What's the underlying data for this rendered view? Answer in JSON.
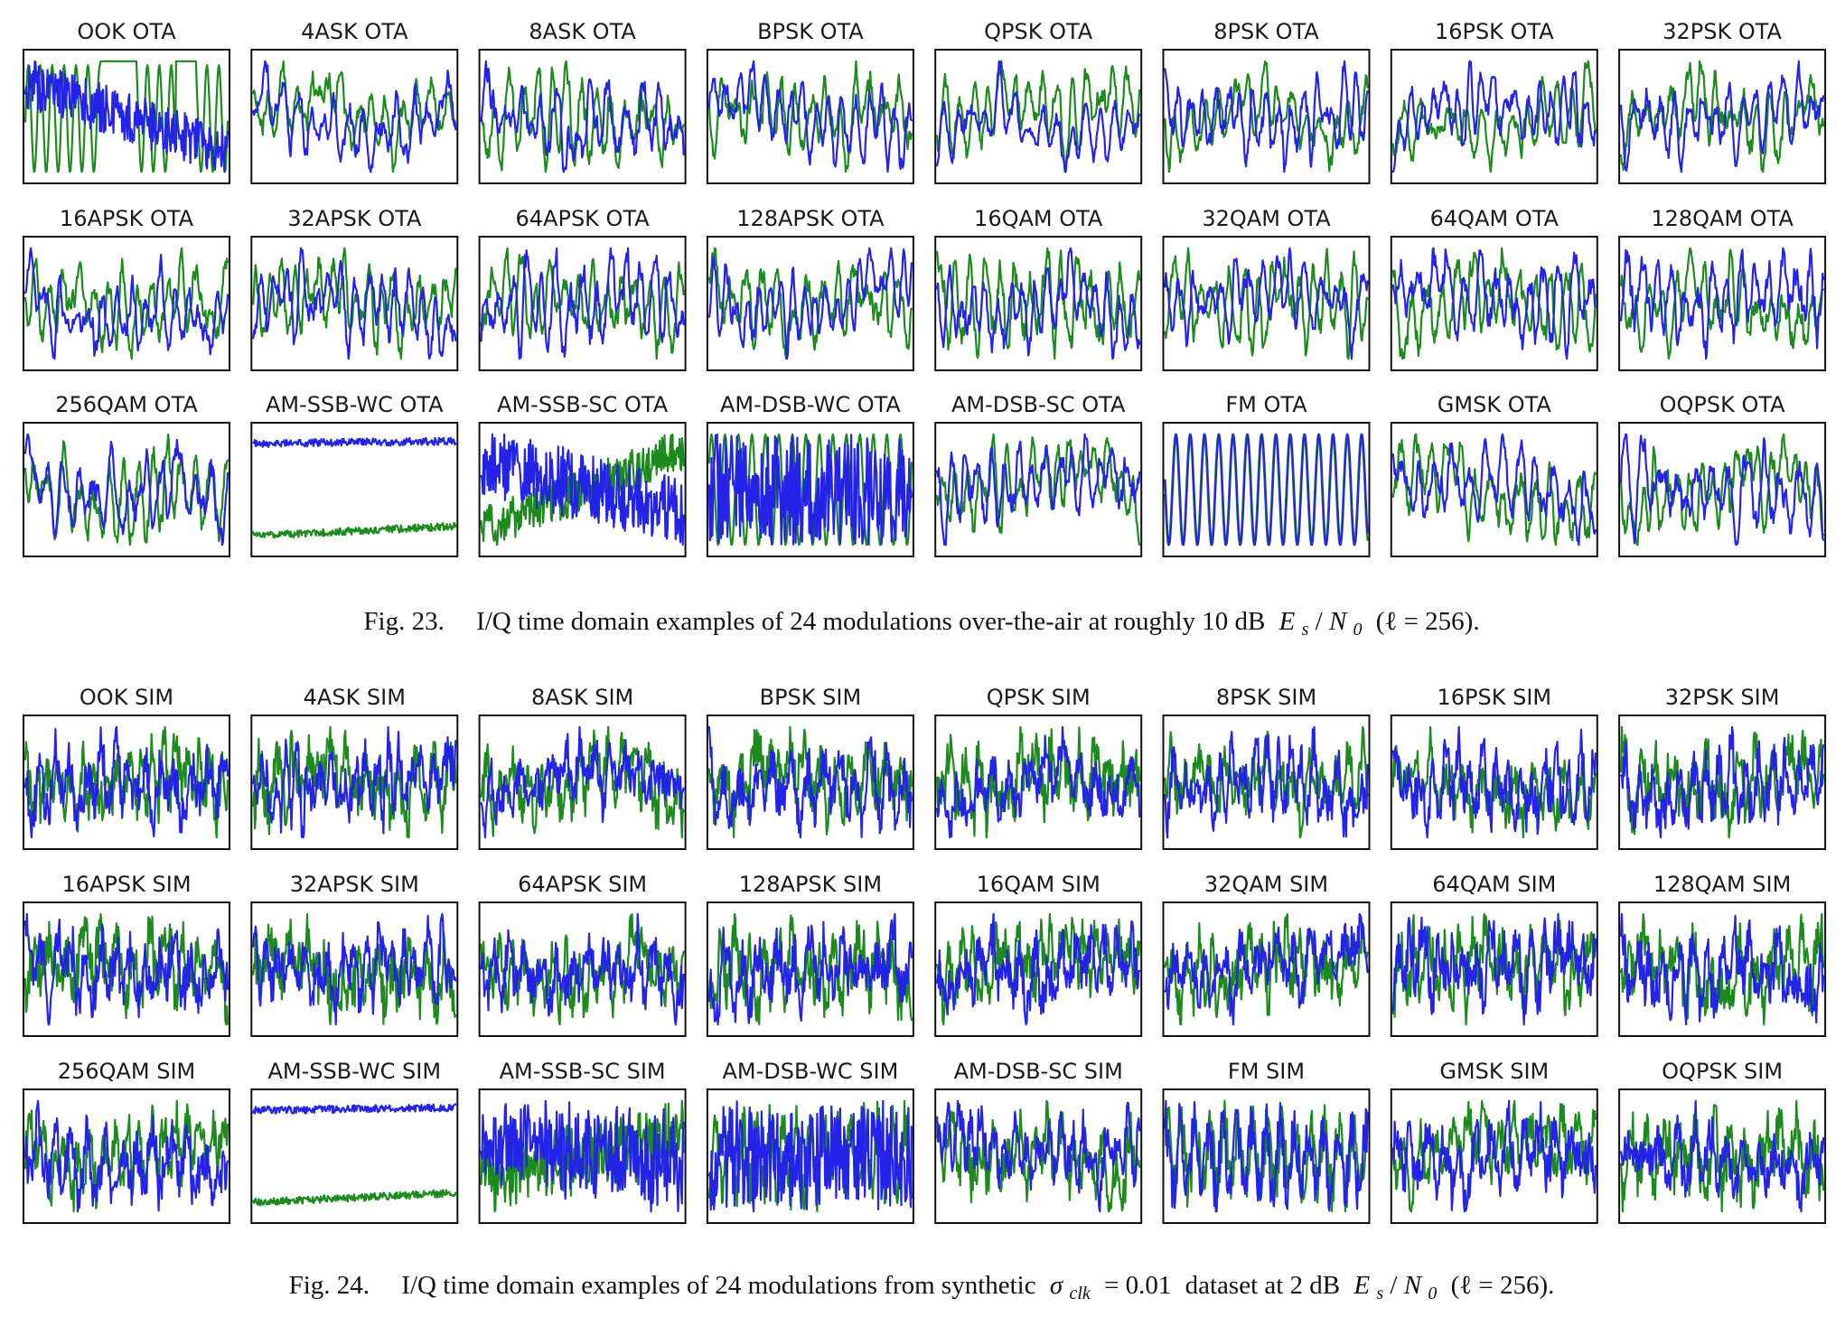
{
  "colors": {
    "I": "#2424e8",
    "Q": "#1d8a1d",
    "frame": "#111111"
  },
  "figures": [
    {
      "id": "fig23",
      "titles": [
        "OOK OTA",
        "4ASK OTA",
        "8ASK OTA",
        "BPSK OTA",
        "QPSK OTA",
        "8PSK OTA",
        "16PSK OTA",
        "32PSK OTA",
        "16APSK OTA",
        "32APSK OTA",
        "64APSK OTA",
        "128APSK OTA",
        "16QAM OTA",
        "32QAM OTA",
        "64QAM OTA",
        "128QAM OTA",
        "256QAM OTA",
        "AM-SSB-WC OTA",
        "AM-SSB-SC OTA",
        "AM-DSB-WC OTA",
        "AM-DSB-SC OTA",
        "FM OTA",
        "GMSK OTA",
        "OQPSK OTA"
      ],
      "caption": {
        "label": "Fig. 23.",
        "text": "I/Q time domain examples of 24 modulations over-the-air at roughly 10 dB",
        "math_es": "E",
        "math_es_sub": "s",
        "math_slash": "/",
        "math_n": "N",
        "math_n_sub": "0",
        "math_tail": "(ℓ = 256)."
      }
    },
    {
      "id": "fig24",
      "titles": [
        "OOK SIM",
        "4ASK SIM",
        "8ASK SIM",
        "BPSK SIM",
        "QPSK SIM",
        "8PSK SIM",
        "16PSK SIM",
        "32PSK SIM",
        "16APSK SIM",
        "32APSK SIM",
        "64APSK SIM",
        "128APSK SIM",
        "16QAM SIM",
        "32QAM SIM",
        "64QAM SIM",
        "128QAM SIM",
        "256QAM SIM",
        "AM-SSB-WC SIM",
        "AM-SSB-SC SIM",
        "AM-DSB-WC SIM",
        "AM-DSB-SC SIM",
        "FM SIM",
        "GMSK SIM",
        "OQPSK SIM"
      ],
      "caption": {
        "label": "Fig. 24.",
        "text_pre": "I/Q time domain examples of 24 modulations from synthetic",
        "math_sigma": "σ",
        "math_sigma_sub": "clk",
        "math_eq": "= 0.01",
        "text_mid": "dataset at 2 dB",
        "math_es": "E",
        "math_es_sub": "s",
        "math_slash": "/",
        "math_n": "N",
        "math_n_sub": "0",
        "math_tail": "(ℓ = 256)."
      }
    }
  ],
  "chart_data": [
    {
      "type": "line",
      "title": "",
      "panels": 24,
      "series": [
        {
          "name": "",
          "channel": "I"
        },
        {
          "name": "",
          "channel": "Q"
        }
      ],
      "samples_per_panel": 256,
      "x": "sample index 0–255",
      "grid": false,
      "legend": "none"
    },
    {
      "type": "line",
      "title": "",
      "panels": 24,
      "series": [
        {
          "name": "",
          "channel": "I"
        },
        {
          "name": "",
          "channel": "Q"
        }
      ],
      "samples_per_panel": 256,
      "x": "sample index 0–255",
      "grid": false,
      "legend": "none"
    }
  ]
}
